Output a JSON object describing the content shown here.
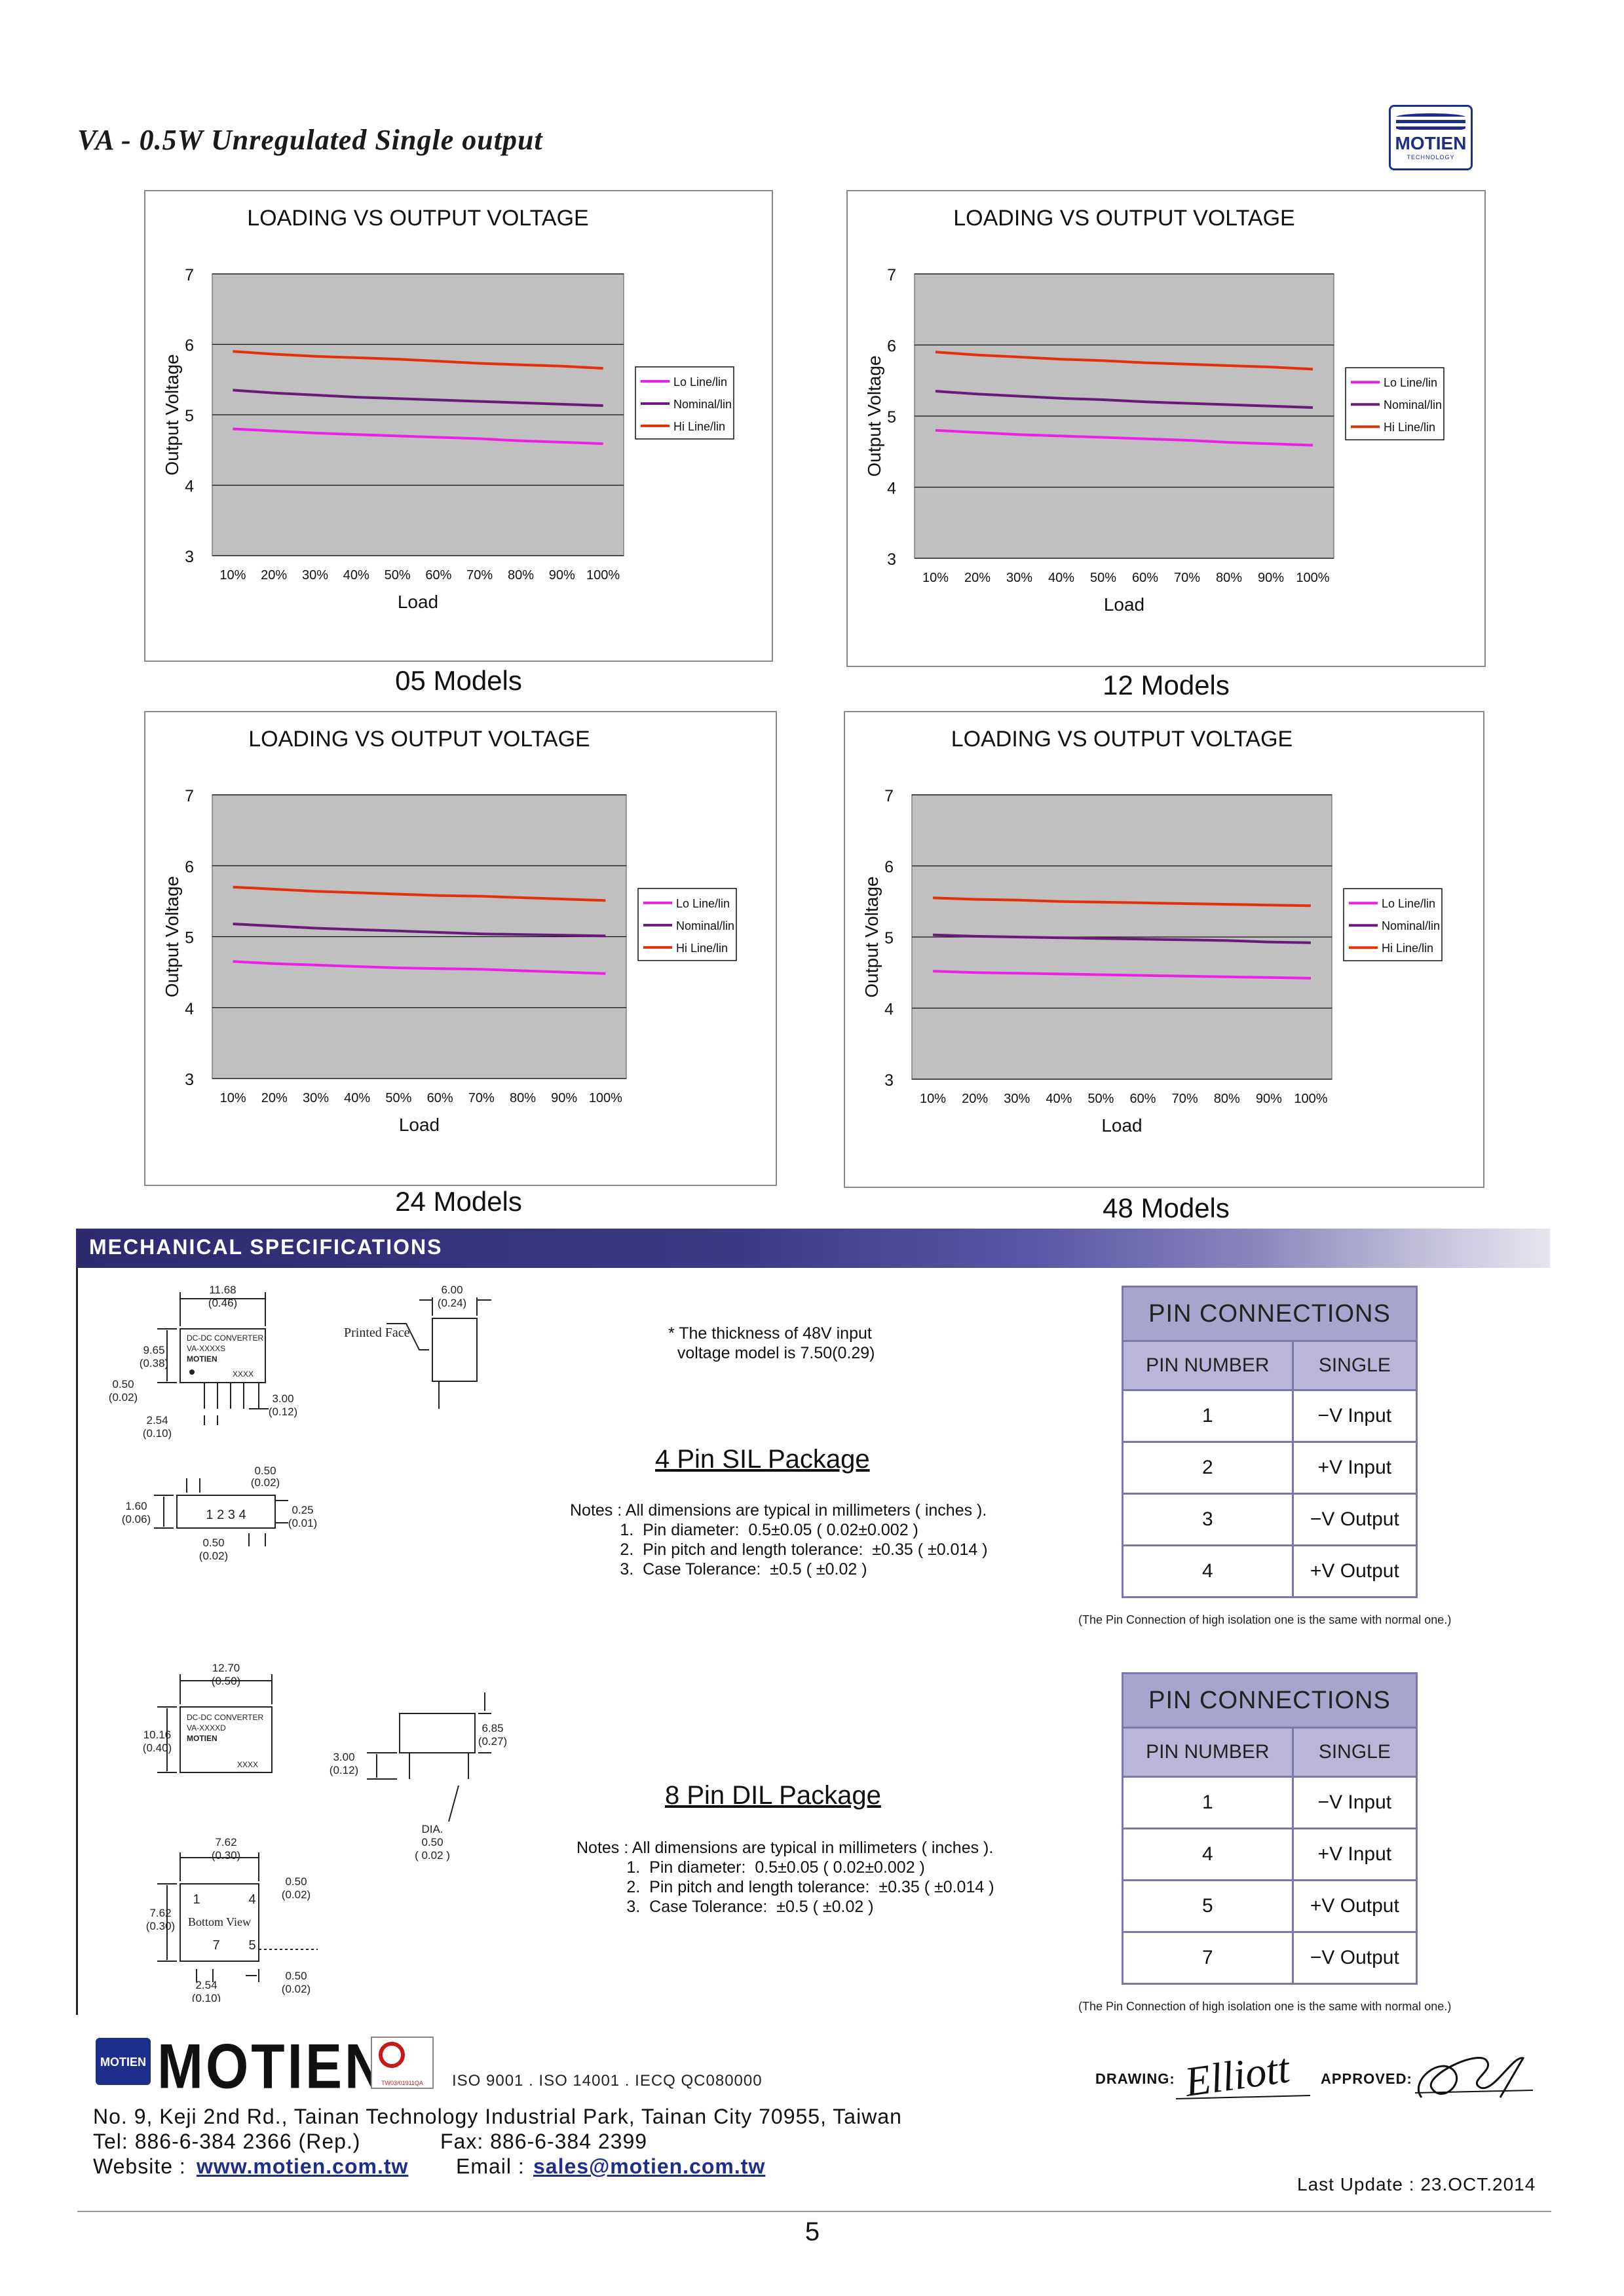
{
  "header": {
    "title": "VA - 0.5W Unregulated Single output",
    "logo": {
      "word": "MOTIEN",
      "sub": "TECHNOLOGY"
    }
  },
  "chart_data": [
    {
      "type": "line",
      "title": "LOADING VS OUTPUT VOLTAGE",
      "xlabel": "Load",
      "ylabel": "Output Voltage",
      "model_label": "05 Models",
      "ylim": [
        3,
        7
      ],
      "yticks": [
        "3",
        "4",
        "5",
        "6",
        "7"
      ],
      "categories": [
        "10%",
        "20%",
        "30%",
        "40%",
        "50%",
        "60%",
        "70%",
        "80%",
        "90%",
        "100%"
      ],
      "series": [
        {
          "name": "Lo Line/lin",
          "color": "#ee1ee6",
          "values": [
            4.8,
            4.77,
            4.74,
            4.72,
            4.7,
            4.68,
            4.66,
            4.63,
            4.61,
            4.59
          ]
        },
        {
          "name": "Nominal/lin",
          "color": "#6a1a7a",
          "values": [
            5.35,
            5.31,
            5.28,
            5.25,
            5.23,
            5.21,
            5.19,
            5.17,
            5.15,
            5.13
          ]
        },
        {
          "name": "Hi Line/lin",
          "color": "#e3310c",
          "values": [
            5.9,
            5.86,
            5.83,
            5.81,
            5.79,
            5.76,
            5.73,
            5.71,
            5.69,
            5.66
          ]
        }
      ]
    },
    {
      "type": "line",
      "title": "LOADING VS OUTPUT VOLTAGE",
      "xlabel": "Load",
      "ylabel": "Output Voltage",
      "model_label": "12 Models",
      "ylim": [
        3,
        7
      ],
      "yticks": [
        "3",
        "4",
        "5",
        "6",
        "7"
      ],
      "categories": [
        "10%",
        "20%",
        "30%",
        "40%",
        "50%",
        "60%",
        "70%",
        "80%",
        "90%",
        "100%"
      ],
      "series": [
        {
          "name": "Lo Line/lin",
          "color": "#ee1ee6",
          "values": [
            4.8,
            4.77,
            4.74,
            4.72,
            4.7,
            4.68,
            4.66,
            4.63,
            4.61,
            4.59
          ]
        },
        {
          "name": "Nominal/lin",
          "color": "#6a1a7a",
          "values": [
            5.35,
            5.31,
            5.28,
            5.25,
            5.23,
            5.2,
            5.18,
            5.16,
            5.14,
            5.12
          ]
        },
        {
          "name": "Hi Line/lin",
          "color": "#e3310c",
          "values": [
            5.9,
            5.86,
            5.83,
            5.8,
            5.78,
            5.75,
            5.73,
            5.71,
            5.69,
            5.66
          ]
        }
      ]
    },
    {
      "type": "line",
      "title": "LOADING VS OUTPUT VOLTAGE",
      "xlabel": "Load",
      "ylabel": "Output Voltage",
      "model_label": "24 Models",
      "ylim": [
        3,
        7
      ],
      "yticks": [
        "3",
        "4",
        "5",
        "6",
        "7"
      ],
      "categories": [
        "10%",
        "20%",
        "30%",
        "40%",
        "50%",
        "60%",
        "70%",
        "80%",
        "90%",
        "100%"
      ],
      "series": [
        {
          "name": "Lo Line/lin",
          "color": "#ee1ee6",
          "values": [
            4.65,
            4.62,
            4.6,
            4.58,
            4.56,
            4.55,
            4.54,
            4.52,
            4.5,
            4.48
          ]
        },
        {
          "name": "Nominal/lin",
          "color": "#6a1a7a",
          "values": [
            5.18,
            5.15,
            5.12,
            5.1,
            5.08,
            5.06,
            5.04,
            5.03,
            5.02,
            5.01
          ]
        },
        {
          "name": "Hi Line/lin",
          "color": "#e3310c",
          "values": [
            5.7,
            5.67,
            5.64,
            5.62,
            5.6,
            5.58,
            5.57,
            5.55,
            5.53,
            5.51
          ]
        }
      ]
    },
    {
      "type": "line",
      "title": "LOADING VS OUTPUT VOLTAGE",
      "xlabel": "Load",
      "ylabel": "Output Voltage",
      "model_label": "48 Models",
      "ylim": [
        3,
        7
      ],
      "yticks": [
        "3",
        "4",
        "5",
        "6",
        "7"
      ],
      "categories": [
        "10%",
        "20%",
        "30%",
        "40%",
        "50%",
        "60%",
        "70%",
        "80%",
        "90%",
        "100%"
      ],
      "series": [
        {
          "name": "Lo Line/lin",
          "color": "#ee1ee6",
          "values": [
            4.52,
            4.5,
            4.49,
            4.48,
            4.47,
            4.46,
            4.45,
            4.44,
            4.43,
            4.42
          ]
        },
        {
          "name": "Nominal/lin",
          "color": "#6a1a7a",
          "values": [
            5.03,
            5.01,
            5.0,
            4.99,
            4.98,
            4.97,
            4.96,
            4.95,
            4.93,
            4.92
          ]
        },
        {
          "name": "Hi Line/lin",
          "color": "#e3310c",
          "values": [
            5.55,
            5.53,
            5.52,
            5.5,
            5.49,
            5.48,
            5.47,
            5.46,
            5.45,
            5.44
          ]
        }
      ]
    }
  ],
  "mechanical": {
    "heading": "MECHANICAL SPECIFICATIONS",
    "sil": {
      "title": "4 Pin SIL Package",
      "thickness_note": "* The thickness of 48V input\n  voltage model is 7.50(0.29)",
      "notes": "Notes : All dimensions are typical in millimeters ( inches ).\n           1.  Pin diameter:  0.5±0.05 ( 0.02±0.002 )\n           2.  Pin pitch and length tolerance:  ±0.35 ( ±0.014 )\n           3.  Case Tolerance:  ±0.5 ( ±0.02 )",
      "dims": {
        "width": "11.68",
        "width_in": "(0.46)",
        "height": "9.65",
        "height_in": "(0.38)",
        "side_w": "6.00",
        "side_w_in": "(0.24)",
        "pin_w": "0.50",
        "pin_w_in": "(0.02)",
        "pin_len": "3.00",
        "pin_len_in": "(0.12)",
        "pitch": "2.54",
        "pitch_in": "(0.10)",
        "bot_top": "0.50",
        "bot_top_in": "(0.02)",
        "bot_h": "1.60",
        "bot_h_in": "(0.06)",
        "bot_r": "0.25",
        "bot_r_in": "(0.01)",
        "bot_b": "0.50",
        "bot_b_in": "(0.02)"
      },
      "label_lines": [
        "DC-DC CONVERTER",
        "VA-XXXXS",
        "MOTIEN"
      ],
      "xxxx": "XXXX",
      "printed_face": "Printed Face",
      "pins": "1 2 3 4"
    },
    "dil": {
      "title": "8 Pin DIL Package",
      "notes": "Notes : All dimensions are typical in millimeters ( inches ).\n           1.  Pin diameter:  0.5±0.05 ( 0.02±0.002 )\n           2.  Pin pitch and length tolerance:  ±0.35 ( ±0.014 )\n           3.  Case Tolerance:  ±0.5 ( ±0.02 )",
      "dims": {
        "width": "12.70",
        "width_in": "(0.50)",
        "height": "10.16",
        "height_in": "(0.40)",
        "pin_len": "3.00",
        "pin_len_in": "(0.12)",
        "side_h": "6.85",
        "side_h_in": "(0.27)",
        "dia": "DIA.",
        "dia_v": "0.50",
        "dia_in": "( 0.02 )",
        "row": "7.62",
        "row_in": "(0.30)",
        "col": "7.62",
        "col_in": "(0.30)",
        "r1": "0.50",
        "r1_in": "(0.02)",
        "pitch": "2.54",
        "pitch_in": "(0.10)",
        "r2": "0.50",
        "r2_in": "(0.02)"
      },
      "label_lines": [
        "DC-DC CONVERTER",
        "VA-XXXXD",
        "MOTIEN"
      ],
      "xxxx": "XXXX",
      "bottom_view": "Bottom View",
      "pin_top": [
        "1",
        "4"
      ],
      "pin_bot": [
        "7",
        "5"
      ]
    }
  },
  "pin_tables": [
    {
      "title": "PIN CONNECTIONS",
      "col1": "PIN NUMBER",
      "col2": "SINGLE",
      "rows": [
        [
          "1",
          "−V Input"
        ],
        [
          "2",
          "+V Input"
        ],
        [
          "3",
          "−V Output"
        ],
        [
          "4",
          "+V Output"
        ]
      ],
      "note": "(The Pin Connection of high isolation one is the same with normal one.)"
    },
    {
      "title": "PIN CONNECTIONS",
      "col1": "PIN NUMBER",
      "col2": "SINGLE",
      "rows": [
        [
          "1",
          "−V Input"
        ],
        [
          "4",
          "+V Input"
        ],
        [
          "5",
          "+V Output"
        ],
        [
          "7",
          "−V Output"
        ]
      ],
      "note": "(The Pin Connection of high isolation one is the same with normal one.)"
    }
  ],
  "footer": {
    "brand": "MOTIEN",
    "logo_word": "MOTIEN",
    "cert_code": "TW03/01911QA",
    "iso": "ISO 9001 . ISO 14001 . IECQ QC080000",
    "address": "No. 9, Keji 2nd Rd., Tainan Technology Industrial Park, Tainan City 70955, Taiwan",
    "tel": "Tel: 886-6-384 2366 (Rep.)",
    "fax": "Fax: 886-6-384 2399",
    "website_label": "Website :",
    "website": "www.motien.com.tw",
    "email_label": "Email :",
    "email": "sales@motien.com.tw",
    "drawing_label": "DRAWING:",
    "approved_label": "APPROVED:",
    "drawing_signature": "Elliott",
    "last_update": "Last Update : 23.OCT.2014",
    "page": "5"
  }
}
